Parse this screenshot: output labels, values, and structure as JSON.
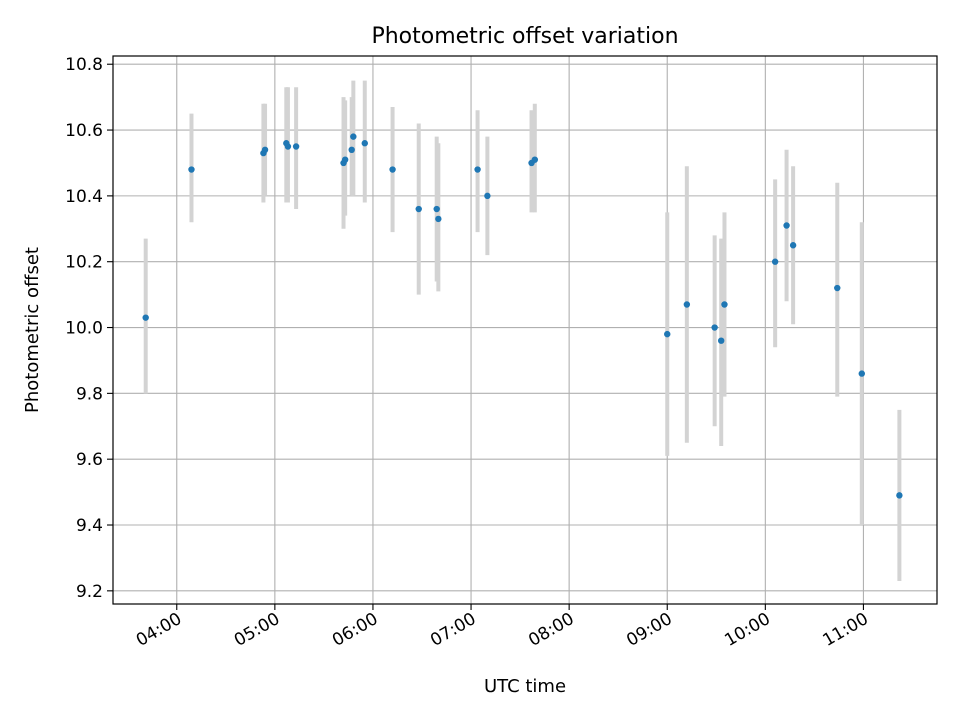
{
  "chart_data": {
    "type": "scatter",
    "title": "Photometric offset variation",
    "xlabel": "UTC time",
    "ylabel": "Photometric offset",
    "xlim": [
      "03:21",
      "11:45"
    ],
    "ylim": [
      9.16,
      10.825
    ],
    "x_ticks": [
      "04:00",
      "05:00",
      "06:00",
      "07:00",
      "08:00",
      "09:00",
      "10:00",
      "11:00"
    ],
    "y_ticks": [
      "9.2",
      "9.4",
      "9.6",
      "9.8",
      "10.0",
      "10.2",
      "10.4",
      "10.6",
      "10.8"
    ],
    "grid": true,
    "colors": {
      "point": "#1f77b4",
      "errorbar": "#d3d3d3",
      "grid": "#b0b0b0"
    },
    "points": [
      {
        "x": "03:41",
        "y": 10.03,
        "lo": 9.8,
        "hi": 10.27
      },
      {
        "x": "04:09",
        "y": 10.48,
        "lo": 10.32,
        "hi": 10.65
      },
      {
        "x": "04:53",
        "y": 10.53,
        "lo": 10.38,
        "hi": 10.68
      },
      {
        "x": "04:54",
        "y": 10.54,
        "lo": 10.4,
        "hi": 10.68
      },
      {
        "x": "05:07",
        "y": 10.56,
        "lo": 10.38,
        "hi": 10.73
      },
      {
        "x": "05:08",
        "y": 10.55,
        "lo": 10.38,
        "hi": 10.73
      },
      {
        "x": "05:13",
        "y": 10.55,
        "lo": 10.36,
        "hi": 10.73
      },
      {
        "x": "05:42",
        "y": 10.5,
        "lo": 10.3,
        "hi": 10.7
      },
      {
        "x": "05:43",
        "y": 10.51,
        "lo": 10.34,
        "hi": 10.69
      },
      {
        "x": "05:47",
        "y": 10.54,
        "lo": 10.4,
        "hi": 10.7
      },
      {
        "x": "05:48",
        "y": 10.58,
        "lo": 10.4,
        "hi": 10.75
      },
      {
        "x": "05:55",
        "y": 10.56,
        "lo": 10.38,
        "hi": 10.75
      },
      {
        "x": "06:12",
        "y": 10.48,
        "lo": 10.29,
        "hi": 10.67
      },
      {
        "x": "06:28",
        "y": 10.36,
        "lo": 10.1,
        "hi": 10.62
      },
      {
        "x": "06:39",
        "y": 10.36,
        "lo": 10.14,
        "hi": 10.58
      },
      {
        "x": "06:40",
        "y": 10.33,
        "lo": 10.11,
        "hi": 10.56
      },
      {
        "x": "07:04",
        "y": 10.48,
        "lo": 10.29,
        "hi": 10.66
      },
      {
        "x": "07:10",
        "y": 10.4,
        "lo": 10.22,
        "hi": 10.58
      },
      {
        "x": "07:37",
        "y": 10.5,
        "lo": 10.35,
        "hi": 10.66
      },
      {
        "x": "07:39",
        "y": 10.51,
        "lo": 10.35,
        "hi": 10.68
      },
      {
        "x": "09:00",
        "y": 9.98,
        "lo": 9.61,
        "hi": 10.35
      },
      {
        "x": "09:12",
        "y": 10.07,
        "lo": 9.65,
        "hi": 10.49
      },
      {
        "x": "09:29",
        "y": 10.0,
        "lo": 9.7,
        "hi": 10.28
      },
      {
        "x": "09:33",
        "y": 9.96,
        "lo": 9.64,
        "hi": 10.27
      },
      {
        "x": "09:35",
        "y": 10.07,
        "lo": 9.79,
        "hi": 10.35
      },
      {
        "x": "10:06",
        "y": 10.2,
        "lo": 9.94,
        "hi": 10.45
      },
      {
        "x": "10:13",
        "y": 10.31,
        "lo": 10.08,
        "hi": 10.54
      },
      {
        "x": "10:17",
        "y": 10.25,
        "lo": 10.01,
        "hi": 10.49
      },
      {
        "x": "10:44",
        "y": 10.12,
        "lo": 9.79,
        "hi": 10.44
      },
      {
        "x": "10:59",
        "y": 9.86,
        "lo": 9.4,
        "hi": 10.32
      },
      {
        "x": "11:22",
        "y": 9.49,
        "lo": 9.23,
        "hi": 9.75
      }
    ]
  }
}
